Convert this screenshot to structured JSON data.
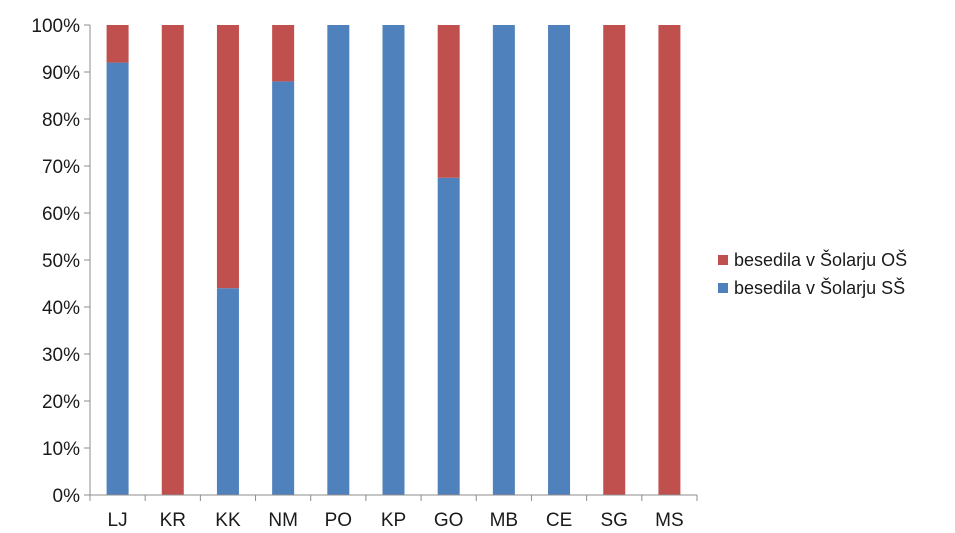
{
  "chart_data": {
    "type": "bar",
    "stacked": true,
    "percent_stacked": true,
    "categories": [
      "LJ",
      "KR",
      "KK",
      "NM",
      "PO",
      "KP",
      "GO",
      "MB",
      "CE",
      "SG",
      "MS"
    ],
    "series": [
      {
        "name": "besedila v Šolarju SŠ",
        "color": "#4f81bd",
        "values": [
          92,
          0,
          44,
          88,
          100,
          100,
          67.5,
          100,
          100,
          0,
          0
        ]
      },
      {
        "name": "besedila v Šolarju OŠ",
        "color": "#c0504d",
        "values": [
          8,
          100,
          56,
          12,
          0,
          0,
          32.5,
          0,
          0,
          100,
          100
        ]
      }
    ],
    "ylim": [
      0,
      100
    ],
    "yticks": [
      0,
      10,
      20,
      30,
      40,
      50,
      60,
      70,
      80,
      90,
      100
    ],
    "ytick_labels": [
      "0%",
      "10%",
      "20%",
      "30%",
      "40%",
      "50%",
      "60%",
      "70%",
      "80%",
      "90%",
      "100%"
    ],
    "title": "",
    "xlabel": "",
    "ylabel": "",
    "grid": false,
    "legend_position": "right",
    "legend_order": [
      "besedila v Šolarju OŠ",
      "besedila v Šolarju SŠ"
    ]
  }
}
